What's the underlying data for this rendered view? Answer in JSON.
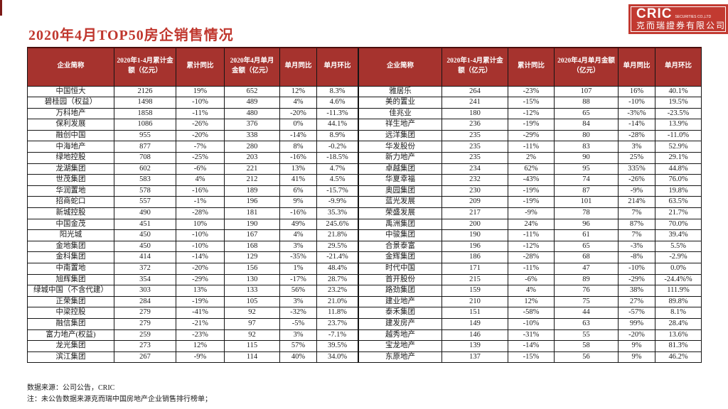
{
  "page": {
    "title": "2020年4月TOP50房企销售情况",
    "notes": [
      "数据来源：公司公告，CRIC",
      "注：未公告数据来源克而瑞中国房地产企业销售排行榜单；"
    ]
  },
  "logo": {
    "brand": "CRIC",
    "tagline": "SECURITIES CO.,LTD",
    "company": "克而瑞證券有限公司"
  },
  "colors": {
    "title_red": "#c0372e",
    "header_bg": "#a6332e",
    "logo_bg": "#c23a31",
    "edge_strip": "#7c1a17"
  },
  "table": {
    "headers": [
      "企业简称",
      "2020年1-4月累计金额（亿元）",
      "累计同比",
      "2020年4月单月金额（亿元）",
      "单月同比",
      "单月环比"
    ],
    "left_rows": [
      [
        "中国恒大",
        "2126",
        "19%",
        "652",
        "12%",
        "8.3%"
      ],
      [
        "碧桂园（权益）",
        "1498",
        "-10%",
        "489",
        "4%",
        "4.6%"
      ],
      [
        "万科地产",
        "1858",
        "-11%",
        "480",
        "-20%",
        "-11.3%"
      ],
      [
        "保利发展",
        "1086",
        "-26%",
        "376",
        "0%",
        "44.1%"
      ],
      [
        "融创中国",
        "955",
        "-20%",
        "338",
        "-14%",
        "8.9%"
      ],
      [
        "中海地产",
        "877",
        "-7%",
        "280",
        "8%",
        "-0.2%"
      ],
      [
        "绿地控股",
        "708",
        "-25%",
        "203",
        "-16%",
        "-18.5%"
      ],
      [
        "龙湖集团",
        "602",
        "-6%",
        "221",
        "13%",
        "4.7%"
      ],
      [
        "世茂集团",
        "583",
        "4%",
        "212",
        "41%",
        "4.5%"
      ],
      [
        "华润置地",
        "578",
        "-16%",
        "189",
        "6%",
        "-15.7%"
      ],
      [
        "招商蛇口",
        "557",
        "-1%",
        "196",
        "9%",
        "-9.9%"
      ],
      [
        "新城控股",
        "490",
        "-28%",
        "181",
        "-16%",
        "35.3%"
      ],
      [
        "中国金茂",
        "451",
        "10%",
        "190",
        "49%",
        "245.6%"
      ],
      [
        "阳光城",
        "450",
        "-10%",
        "167",
        "4%",
        "21.8%"
      ],
      [
        "金地集团",
        "450",
        "-10%",
        "168",
        "3%",
        "29.5%"
      ],
      [
        "金科集团",
        "414",
        "-14%",
        "129",
        "-35%",
        "-21.4%"
      ],
      [
        "中南置地",
        "372",
        "-20%",
        "156",
        "1%",
        "48.4%"
      ],
      [
        "旭辉集团",
        "354",
        "-29%",
        "130",
        "-17%",
        "28.7%"
      ],
      [
        "绿城中国（不含代建）",
        "303",
        "13%",
        "133",
        "56%",
        "23.2%"
      ],
      [
        "正荣集团",
        "284",
        "-19%",
        "105",
        "3%",
        "21.0%"
      ],
      [
        "中梁控股",
        "279",
        "-41%",
        "92",
        "-32%",
        "11.8%"
      ],
      [
        "融信集团",
        "279",
        "-21%",
        "97",
        "-5%",
        "23.7%"
      ],
      [
        "富力地产(权益)",
        "259",
        "-23%",
        "92",
        "3%",
        "-7.1%"
      ],
      [
        "龙光集团",
        "273",
        "12%",
        "115",
        "57%",
        "39.5%"
      ],
      [
        "滨江集团",
        "267",
        "-9%",
        "114",
        "40%",
        "34.0%"
      ]
    ],
    "right_rows": [
      [
        "雅居乐",
        "264",
        "-23%",
        "107",
        "16%",
        "40.1%"
      ],
      [
        "美的置业",
        "241",
        "-15%",
        "88",
        "-10%",
        "19.5%"
      ],
      [
        "佳兆业",
        "180",
        "-12%",
        "65",
        "-3%%",
        "-23.5%"
      ],
      [
        "祥生地产",
        "236",
        "-19%",
        "84",
        "-14%",
        "13.9%"
      ],
      [
        "远洋集团",
        "235",
        "-29%",
        "80",
        "-28%",
        "-11.0%"
      ],
      [
        "华发股份",
        "235",
        "-11%",
        "83",
        "3%",
        "52.9%"
      ],
      [
        "新力地产",
        "235",
        "2%",
        "90",
        "25%",
        "29.1%"
      ],
      [
        "卓越集团",
        "234",
        "62%",
        "95",
        "335%",
        "44.8%"
      ],
      [
        "华夏幸福",
        "232",
        "-43%",
        "74",
        "-26%",
        "76.0%"
      ],
      [
        "奥园集团",
        "230",
        "-19%",
        "87",
        "-9%",
        "19.8%"
      ],
      [
        "蓝光发展",
        "209",
        "-19%",
        "101",
        "214%",
        "63.5%"
      ],
      [
        "荣盛发展",
        "217",
        "-9%",
        "78",
        "7%",
        "21.7%"
      ],
      [
        "禹洲集团",
        "200",
        "24%",
        "96",
        "87%",
        "70.0%"
      ],
      [
        "中骏集团",
        "190",
        "-11%",
        "61",
        "7%",
        "39.4%"
      ],
      [
        "合景泰富",
        "196",
        "-12%",
        "65",
        "-3%",
        "5.5%"
      ],
      [
        "金辉集团",
        "186",
        "-28%",
        "68",
        "-8%",
        "-2.9%"
      ],
      [
        "时代中国",
        "171",
        "-11%",
        "47",
        "-10%",
        "0.0%"
      ],
      [
        "首开股份",
        "215",
        "-6%",
        "89",
        "-29%",
        "-24.4%%"
      ],
      [
        "路劲集团",
        "159",
        "4%",
        "76",
        "38%",
        "111.9%"
      ],
      [
        "建业地产",
        "210",
        "12%",
        "75",
        "27%",
        "89.8%"
      ],
      [
        "泰禾集团",
        "151",
        "-58%",
        "44",
        "-57%",
        "8.1%"
      ],
      [
        "建发房产",
        "149",
        "-10%",
        "63",
        "99%",
        "28.4%"
      ],
      [
        "越秀地产",
        "146",
        "-31%",
        "55",
        "-20%",
        "13.6%"
      ],
      [
        "宝龙地产",
        "139",
        "-14%",
        "58",
        "9%",
        "81.3%"
      ],
      [
        "东原地产",
        "137",
        "-15%",
        "56",
        "9%",
        "46.2%"
      ]
    ]
  }
}
